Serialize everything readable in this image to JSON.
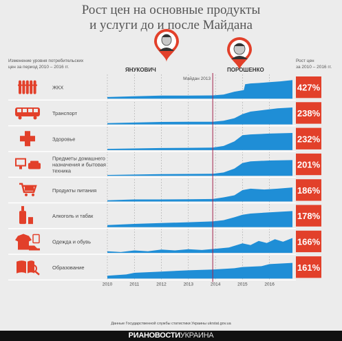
{
  "title": {
    "line1": "Рост цен на основные продукты",
    "line2": "и услуги до и после Майдана"
  },
  "left_header": {
    "line1": "Изменение уровня потребительских",
    "line2": "цен за период 2010 – 2016 гг."
  },
  "right_header": {
    "line1": "Рост цен",
    "line2": "за 2010 – 2016 гг."
  },
  "presidents": [
    "ЯНУКОВИЧ",
    "ПОРОШЕНКО"
  ],
  "maidan_label": "Майдан 2013",
  "source": "Данные Государственной службы статистики Украины ukrstat.gov.ua",
  "footer": {
    "brand": "РИАНОВОСТИ",
    "brand2": "УКРАИНА"
  },
  "colors": {
    "area": "#1f8ed6",
    "accent": "#e2402a",
    "maidan_line": "#a2224a",
    "icons": [
      "radiator-icon",
      "tram-icon",
      "medical-cross-icon",
      "tv-sofa-icon",
      "shopping-cart-icon",
      "bottle-glass-icon",
      "clothes-shoes-icon",
      "book-magnifier-icon"
    ]
  },
  "chart_data": {
    "type": "area",
    "x_ticks": [
      "2010",
      "2011",
      "2012",
      "2013",
      "2014",
      "2015",
      "2016"
    ],
    "xlim": [
      2010,
      2016.85
    ],
    "maidan_x": 2013.9,
    "series": [
      {
        "name": "ЖКХ",
        "total": "427%",
        "points": [
          [
            2010,
            0.08
          ],
          [
            2011,
            0.12
          ],
          [
            2012,
            0.15
          ],
          [
            2013,
            0.15
          ],
          [
            2013.9,
            0.16
          ],
          [
            2014.3,
            0.2
          ],
          [
            2014.7,
            0.34
          ],
          [
            2015.05,
            0.42
          ],
          [
            2015.1,
            0.7
          ],
          [
            2015.3,
            0.74
          ],
          [
            2015.6,
            0.76
          ],
          [
            2016,
            0.8
          ],
          [
            2016.4,
            0.84
          ],
          [
            2016.85,
            0.9
          ]
        ]
      },
      {
        "name": "Транспорт",
        "total": "238%",
        "points": [
          [
            2010,
            0.06
          ],
          [
            2011,
            0.09
          ],
          [
            2012,
            0.12
          ],
          [
            2013,
            0.13
          ],
          [
            2013.9,
            0.13
          ],
          [
            2014.3,
            0.18
          ],
          [
            2014.7,
            0.3
          ],
          [
            2015,
            0.5
          ],
          [
            2015.3,
            0.62
          ],
          [
            2015.8,
            0.7
          ],
          [
            2016.3,
            0.78
          ],
          [
            2016.85,
            0.82
          ]
        ]
      },
      {
        "name": "Здоровье",
        "total": "232%",
        "points": [
          [
            2010,
            0.06
          ],
          [
            2011,
            0.08
          ],
          [
            2012,
            0.1
          ],
          [
            2013,
            0.11
          ],
          [
            2013.9,
            0.12
          ],
          [
            2014.3,
            0.2
          ],
          [
            2014.7,
            0.42
          ],
          [
            2015,
            0.72
          ],
          [
            2015.3,
            0.76
          ],
          [
            2016,
            0.8
          ],
          [
            2016.85,
            0.83
          ]
        ]
      },
      {
        "name": "Предметы домашнего назначения и бытовая техника",
        "total": "201%",
        "points": [
          [
            2010,
            0.04
          ],
          [
            2011,
            0.06
          ],
          [
            2012,
            0.08
          ],
          [
            2013,
            0.09
          ],
          [
            2013.9,
            0.1
          ],
          [
            2014.3,
            0.16
          ],
          [
            2014.7,
            0.35
          ],
          [
            2015,
            0.62
          ],
          [
            2015.3,
            0.7
          ],
          [
            2016,
            0.74
          ],
          [
            2016.85,
            0.76
          ]
        ]
      },
      {
        "name": "Продукты питания",
        "total": "186%",
        "points": [
          [
            2010,
            0.06
          ],
          [
            2011,
            0.1
          ],
          [
            2012,
            0.1
          ],
          [
            2013,
            0.11
          ],
          [
            2013.9,
            0.12
          ],
          [
            2014.3,
            0.2
          ],
          [
            2014.7,
            0.3
          ],
          [
            2015,
            0.55
          ],
          [
            2015.3,
            0.62
          ],
          [
            2015.8,
            0.58
          ],
          [
            2016.3,
            0.62
          ],
          [
            2016.85,
            0.68
          ]
        ]
      },
      {
        "name": "Алкоголь и табак",
        "total": "178%",
        "points": [
          [
            2010,
            0.1
          ],
          [
            2011,
            0.16
          ],
          [
            2012,
            0.2
          ],
          [
            2013,
            0.24
          ],
          [
            2013.9,
            0.28
          ],
          [
            2014.3,
            0.34
          ],
          [
            2014.7,
            0.48
          ],
          [
            2015,
            0.6
          ],
          [
            2015.3,
            0.66
          ],
          [
            2016,
            0.72
          ],
          [
            2016.85,
            0.78
          ]
        ]
      },
      {
        "name": "Одежда и обувь",
        "total": "166%",
        "points": [
          [
            2010,
            0.08
          ],
          [
            2010.5,
            0.04
          ],
          [
            2011,
            0.12
          ],
          [
            2011.5,
            0.08
          ],
          [
            2012,
            0.16
          ],
          [
            2012.5,
            0.12
          ],
          [
            2013,
            0.18
          ],
          [
            2013.5,
            0.14
          ],
          [
            2014,
            0.2
          ],
          [
            2014.5,
            0.26
          ],
          [
            2015,
            0.46
          ],
          [
            2015.3,
            0.38
          ],
          [
            2015.6,
            0.58
          ],
          [
            2015.9,
            0.48
          ],
          [
            2016.2,
            0.66
          ],
          [
            2016.5,
            0.54
          ],
          [
            2016.85,
            0.72
          ]
        ]
      },
      {
        "name": "Образование",
        "total": "161%",
        "points": [
          [
            2010,
            0.14
          ],
          [
            2010.7,
            0.2
          ],
          [
            2011,
            0.28
          ],
          [
            2012,
            0.34
          ],
          [
            2013,
            0.4
          ],
          [
            2013.9,
            0.44
          ],
          [
            2014.7,
            0.5
          ],
          [
            2015,
            0.56
          ],
          [
            2015.7,
            0.6
          ],
          [
            2016,
            0.7
          ],
          [
            2016.85,
            0.76
          ]
        ]
      }
    ]
  }
}
